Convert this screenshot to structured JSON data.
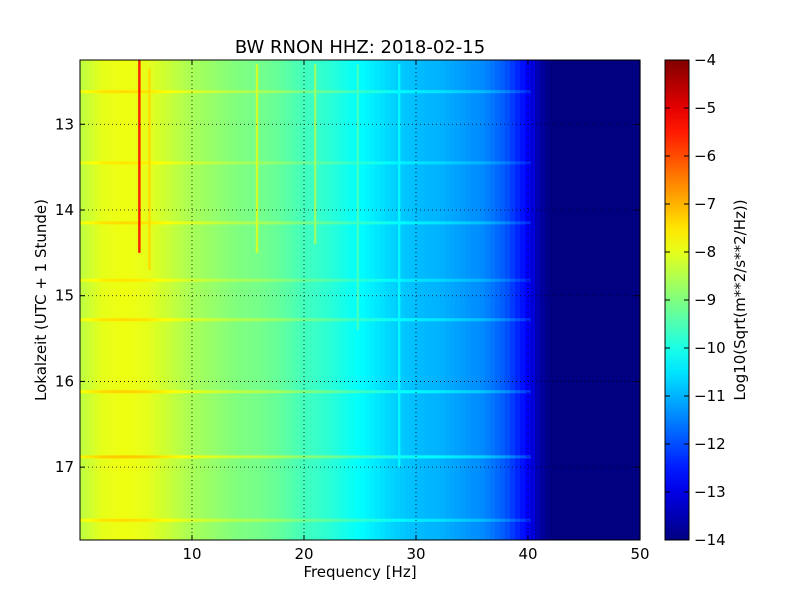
{
  "chart_data": {
    "type": "heatmap",
    "title": "BW RNON HHZ: 2018-02-15",
    "xlabel": "Frequency [Hz]",
    "ylabel": "Lokalzeit (UTC + 1 Stunde)",
    "xlim": [
      0,
      50
    ],
    "ylim": [
      12.25,
      17.85
    ],
    "y_inverted": true,
    "grid": true,
    "x_ticks": [
      10,
      20,
      30,
      40,
      50
    ],
    "y_ticks": [
      13,
      14,
      15,
      16,
      17
    ],
    "colorbar": {
      "label": "Log10(Sqrt(m**2/s**2/Hz))",
      "range": [
        -14,
        -4
      ],
      "ticks": [
        -4,
        -5,
        -6,
        -7,
        -8,
        -9,
        -10,
        -11,
        -12,
        -13,
        -14
      ],
      "colormap": "jet"
    },
    "spectrum_profile": {
      "frequency_hz": [
        0,
        2,
        4,
        6,
        8,
        10,
        12,
        14,
        16,
        18,
        20,
        22,
        24,
        26,
        28,
        30,
        32,
        34,
        36,
        38,
        40,
        41,
        42,
        44,
        46,
        48,
        50
      ],
      "log10_amplitude": [
        -8.4,
        -8.0,
        -7.9,
        -8.0,
        -8.3,
        -8.6,
        -8.8,
        -9.0,
        -9.1,
        -9.3,
        -9.6,
        -9.8,
        -10.1,
        -10.4,
        -10.7,
        -10.9,
        -11.0,
        -11.2,
        -11.4,
        -11.9,
        -12.8,
        -13.6,
        -14.0,
        -14.0,
        -14.0,
        -14.0,
        -14.0
      ]
    },
    "spectral_lines": [
      {
        "frequency_hz": 5.3,
        "start_time": 12.25,
        "end_time": 14.5,
        "log10_amplitude": -5.5
      },
      {
        "frequency_hz": 6.2,
        "start_time": 12.35,
        "end_time": 14.7,
        "log10_amplitude": -7.4
      },
      {
        "frequency_hz": 15.8,
        "start_time": 12.3,
        "end_time": 14.5,
        "log10_amplitude": -8.2
      },
      {
        "frequency_hz": 21.0,
        "start_time": 12.3,
        "end_time": 14.4,
        "log10_amplitude": -8.8
      },
      {
        "frequency_hz": 24.8,
        "start_time": 12.3,
        "end_time": 15.4,
        "log10_amplitude": -9.6
      },
      {
        "frequency_hz": 28.5,
        "start_time": 12.3,
        "end_time": 17.0,
        "log10_amplitude": -10.3
      }
    ],
    "time_bands": [
      {
        "time": 12.62,
        "log10_offset": 0.5
      },
      {
        "time": 13.45,
        "log10_offset": 0.4
      },
      {
        "time": 14.15,
        "log10_offset": 0.5
      },
      {
        "time": 14.82,
        "log10_offset": 0.4
      },
      {
        "time": 15.28,
        "log10_offset": 0.5
      },
      {
        "time": 16.12,
        "log10_offset": 0.6
      },
      {
        "time": 16.88,
        "log10_offset": 0.7
      },
      {
        "time": 17.62,
        "log10_offset": 0.5
      }
    ]
  }
}
